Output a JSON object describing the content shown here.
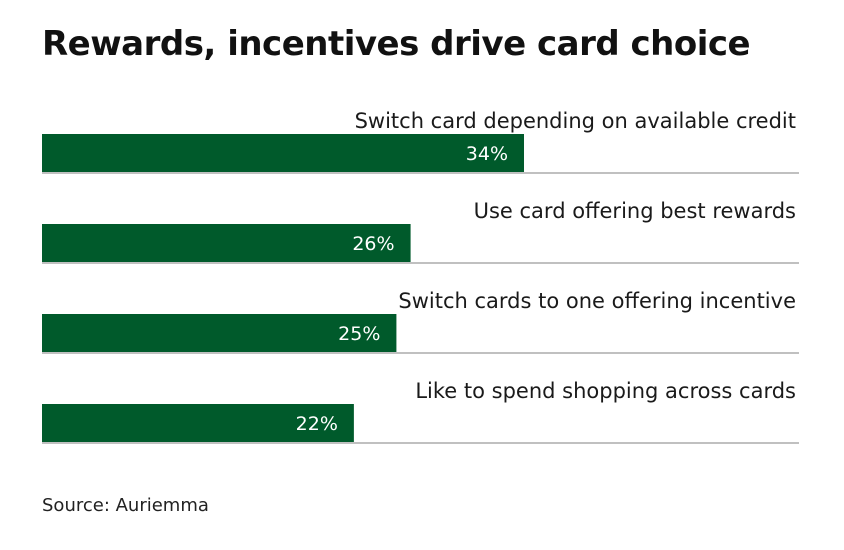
{
  "title": "Rewards, incentives drive card choice",
  "source": "Source: Auriemma",
  "colors": {
    "bar": "#005a2b",
    "divider": "#9a9a9a",
    "value_text": "#ffffff"
  },
  "chart_data": {
    "type": "bar",
    "orientation": "horizontal",
    "categories": [
      "Switch card depending on available credit",
      "Use card offering best rewards",
      "Switch cards to one offering incentive",
      "Like to spend shopping across cards"
    ],
    "values": [
      34,
      26,
      25,
      22
    ],
    "value_labels": [
      "34%",
      "26%",
      "25%",
      "22%"
    ],
    "unit": "%",
    "title": "Rewards, incentives drive card choice",
    "xlabel": "",
    "ylabel": "",
    "xlim": [
      0,
      100
    ],
    "grid": false,
    "legend": "none"
  }
}
